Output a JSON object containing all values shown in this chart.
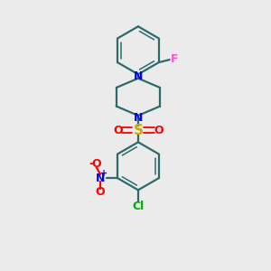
{
  "bg_color": "#ebebeb",
  "atom_colors": {
    "C": "#000000",
    "N": "#0000ff",
    "O": "#ff0000",
    "S": "#ccaa00",
    "F": "#ff55cc",
    "Cl": "#00aa00"
  },
  "bond_color": "#2d6b6b",
  "figsize": [
    3.0,
    3.0
  ],
  "dpi": 100
}
